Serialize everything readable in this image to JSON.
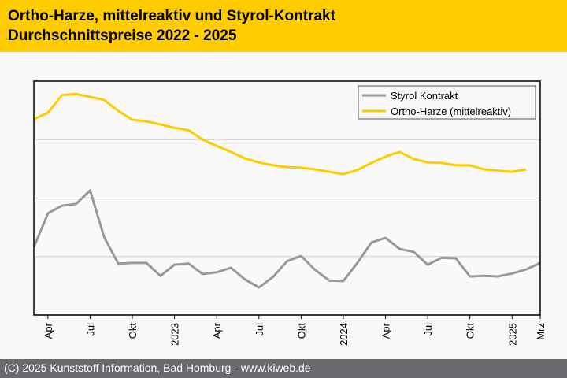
{
  "header": {
    "title_line1": "Ortho-Harze, mittelreaktiv und Styrol-Kontrakt",
    "title_line2": "Durchschnittspreise 2022 - 2025"
  },
  "footer": {
    "copyright": "(C) 2025 Kunststoff Information, Bad Homburg - www.kiweb.de"
  },
  "colors": {
    "header_bg": "#ffcc00",
    "footer_bg": "#696a6e",
    "styrol": "#999999",
    "ortho": "#ffcc00"
  },
  "chart_data": {
    "type": "line",
    "title": "Ortho-Harze, mittelreaktiv und Styrol-Kontrakt Durchschnittspreise 2022 - 2025",
    "xlabel": "",
    "ylabel": "",
    "y_axis_note": "no y-axis labels shown; values in relative grid units (0 = bottom, 4 = top)",
    "ylim": [
      0,
      4
    ],
    "grid": true,
    "legend_position": "top-right",
    "x": [
      "2022-03",
      "2022-04",
      "2022-05",
      "2022-06",
      "2022-07",
      "2022-08",
      "2022-09",
      "2022-10",
      "2022-11",
      "2022-12",
      "2023-01",
      "2023-02",
      "2023-03",
      "2023-04",
      "2023-05",
      "2023-06",
      "2023-07",
      "2023-08",
      "2023-09",
      "2023-10",
      "2023-11",
      "2023-12",
      "2024-01",
      "2024-02",
      "2024-03",
      "2024-04",
      "2024-05",
      "2024-06",
      "2024-07",
      "2024-08",
      "2024-09",
      "2024-10",
      "2024-11",
      "2024-12",
      "2025-01",
      "2025-02",
      "2025-03"
    ],
    "tick_labels": [
      {
        "index": 1,
        "label": "Apr"
      },
      {
        "index": 4,
        "label": "Jul"
      },
      {
        "index": 7,
        "label": "Okt"
      },
      {
        "index": 10,
        "label": "2023"
      },
      {
        "index": 13,
        "label": "Apr"
      },
      {
        "index": 16,
        "label": "Jul"
      },
      {
        "index": 19,
        "label": "Okt"
      },
      {
        "index": 22,
        "label": "2024"
      },
      {
        "index": 25,
        "label": "Apr"
      },
      {
        "index": 28,
        "label": "Jul"
      },
      {
        "index": 31,
        "label": "Okt"
      },
      {
        "index": 34,
        "label": "2025"
      },
      {
        "index": 36,
        "label": "Mrz"
      }
    ],
    "series": [
      {
        "name": "Styrol Kontrakt",
        "color": "#999999",
        "values": [
          1.16,
          1.74,
          1.87,
          1.9,
          2.13,
          1.33,
          0.88,
          0.89,
          0.89,
          0.67,
          0.86,
          0.88,
          0.7,
          0.73,
          0.81,
          0.61,
          0.47,
          0.65,
          0.92,
          1.01,
          0.77,
          0.59,
          0.58,
          0.89,
          1.24,
          1.32,
          1.13,
          1.08,
          0.86,
          0.98,
          0.97,
          0.66,
          0.67,
          0.66,
          0.71,
          0.78,
          0.89
        ]
      },
      {
        "name": "Ortho-Harze (mittelreaktiv)",
        "color": "#ffcc00",
        "values": [
          3.35,
          3.46,
          3.76,
          3.78,
          3.73,
          3.68,
          3.49,
          3.34,
          3.31,
          3.26,
          3.2,
          3.16,
          3.0,
          2.89,
          2.79,
          2.68,
          2.61,
          2.56,
          2.53,
          2.52,
          2.49,
          2.45,
          2.41,
          2.48,
          2.6,
          2.71,
          2.79,
          2.67,
          2.61,
          2.6,
          2.56,
          2.56,
          2.49,
          2.47,
          2.45,
          2.49,
          null
        ]
      }
    ]
  }
}
